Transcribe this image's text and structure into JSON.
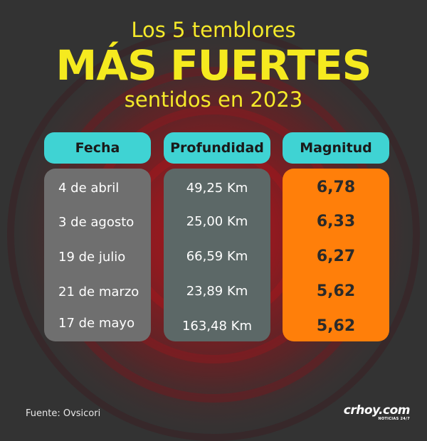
{
  "header": {
    "line1": "Los 5 temblores",
    "line2": "MÁS FUERTES",
    "line3": "sentidos en 2023"
  },
  "columns": {
    "date": "Fecha",
    "depth": "Profundidad",
    "magnitude": "Magnitud"
  },
  "rows": [
    {
      "date": "4 de abril",
      "depth": "49,25 Km",
      "magnitude": "6,78"
    },
    {
      "date": "3 de agosto",
      "depth": "25,00 Km",
      "magnitude": "6,33"
    },
    {
      "date": "19 de julio",
      "depth": "66,59 Km",
      "magnitude": "6,27"
    },
    {
      "date": "21 de marzo",
      "depth": "23,89 Km",
      "magnitude": "5,62"
    },
    {
      "date": "17 de mayo",
      "depth": "163,48 Km",
      "magnitude": "5,62"
    }
  ],
  "footer": {
    "source": "Fuente: Ovsicori",
    "logo": "crhoy.com",
    "logo_tagline": "NOTICIAS 24/7"
  },
  "colors": {
    "title": "#f5e92a",
    "header_pill": "#3fd3d3",
    "date_panel": "#6f6f6f",
    "depth_panel": "#5c6867",
    "magnitude_panel": "#ff7f0a",
    "background": "#333333",
    "rings": "#b3121a"
  }
}
